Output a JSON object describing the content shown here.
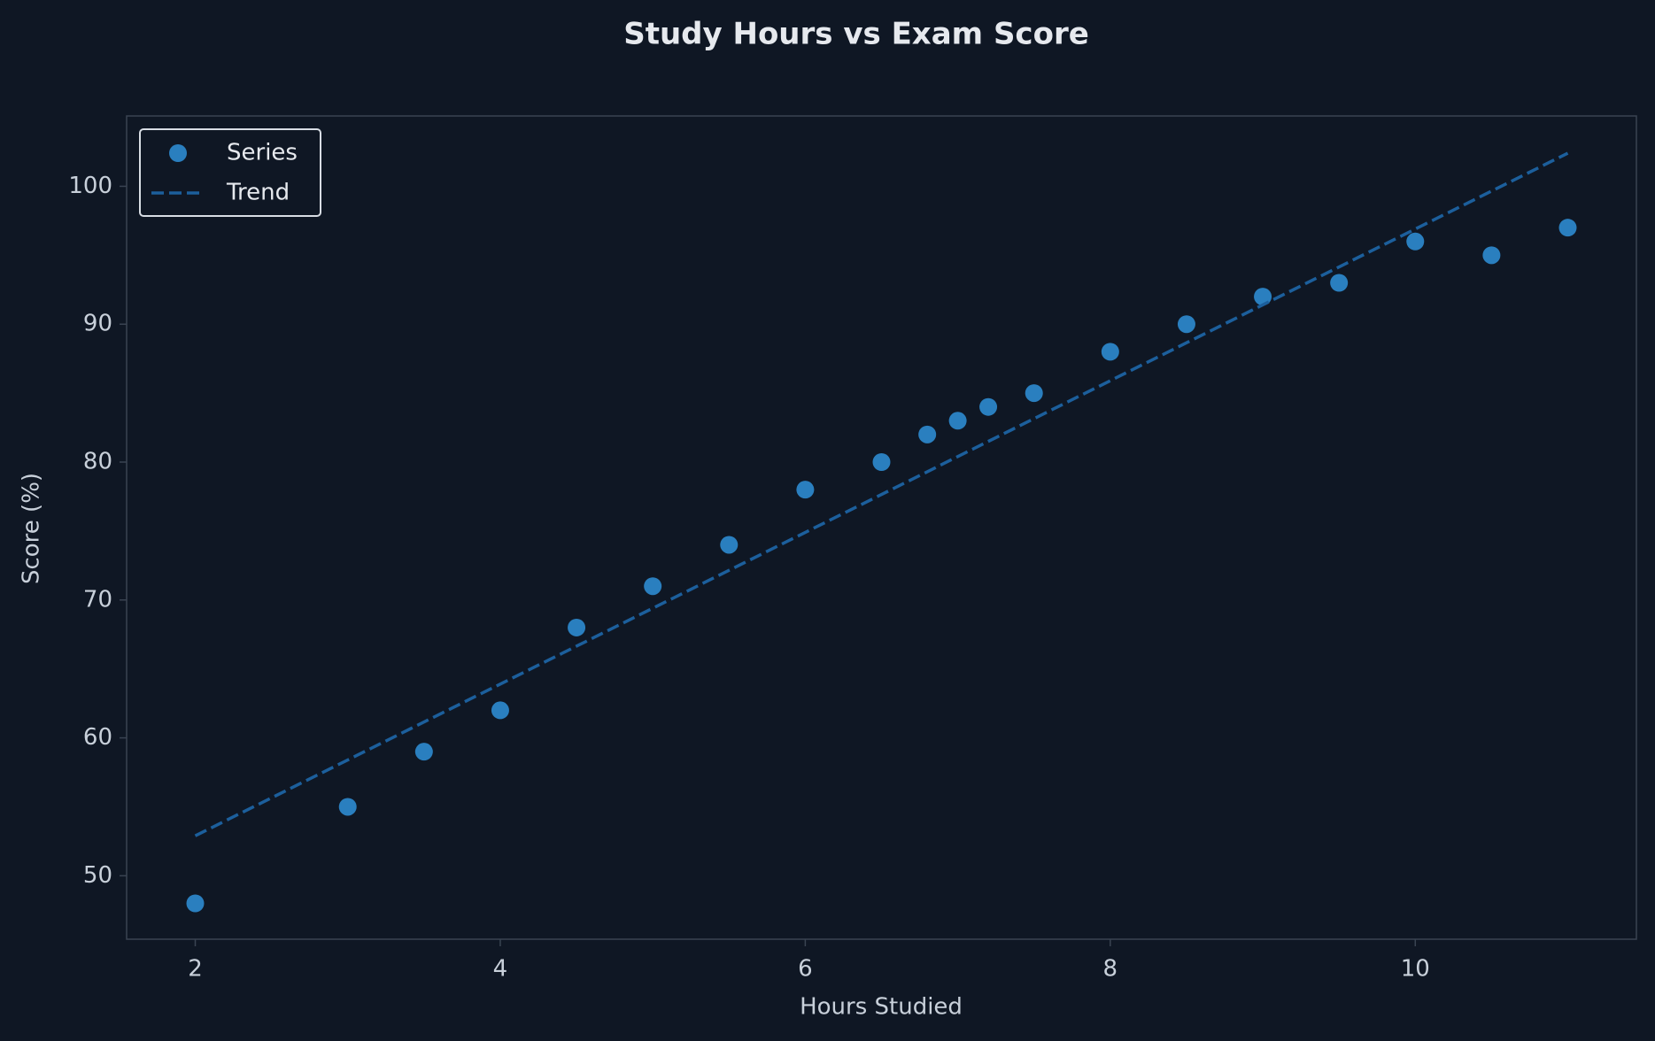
{
  "chart_data": {
    "type": "scatter",
    "title": "Study Hours vs Exam Score",
    "xlabel": "Hours Studied",
    "ylabel": "Score (%)",
    "series": [
      {
        "name": "Series",
        "color": "#2a7fbf",
        "mark": "point",
        "x": [
          2,
          3,
          3.5,
          4,
          4.5,
          5,
          5.5,
          6,
          6.5,
          6.8,
          7,
          7.2,
          7.5,
          8,
          8.5,
          9,
          9.5,
          10,
          10.5,
          11
        ],
        "values": [
          48,
          55,
          59,
          62,
          68,
          71,
          74,
          78,
          80,
          82,
          83,
          84,
          85,
          88,
          90,
          92,
          93,
          96,
          95,
          97
        ]
      },
      {
        "name": "Trend",
        "color": "#1c5f9c",
        "mark": "dashed-line",
        "x": [
          2,
          11
        ],
        "values": [
          52.9,
          102.4
        ]
      }
    ],
    "xlim": [
      1.55,
      11.45
    ],
    "xticks": [
      2,
      4,
      6,
      8,
      10
    ],
    "ylim": [
      45.4,
      105.1
    ],
    "yticks": [
      50,
      60,
      70,
      80,
      90,
      100
    ],
    "legend": "upper left"
  }
}
